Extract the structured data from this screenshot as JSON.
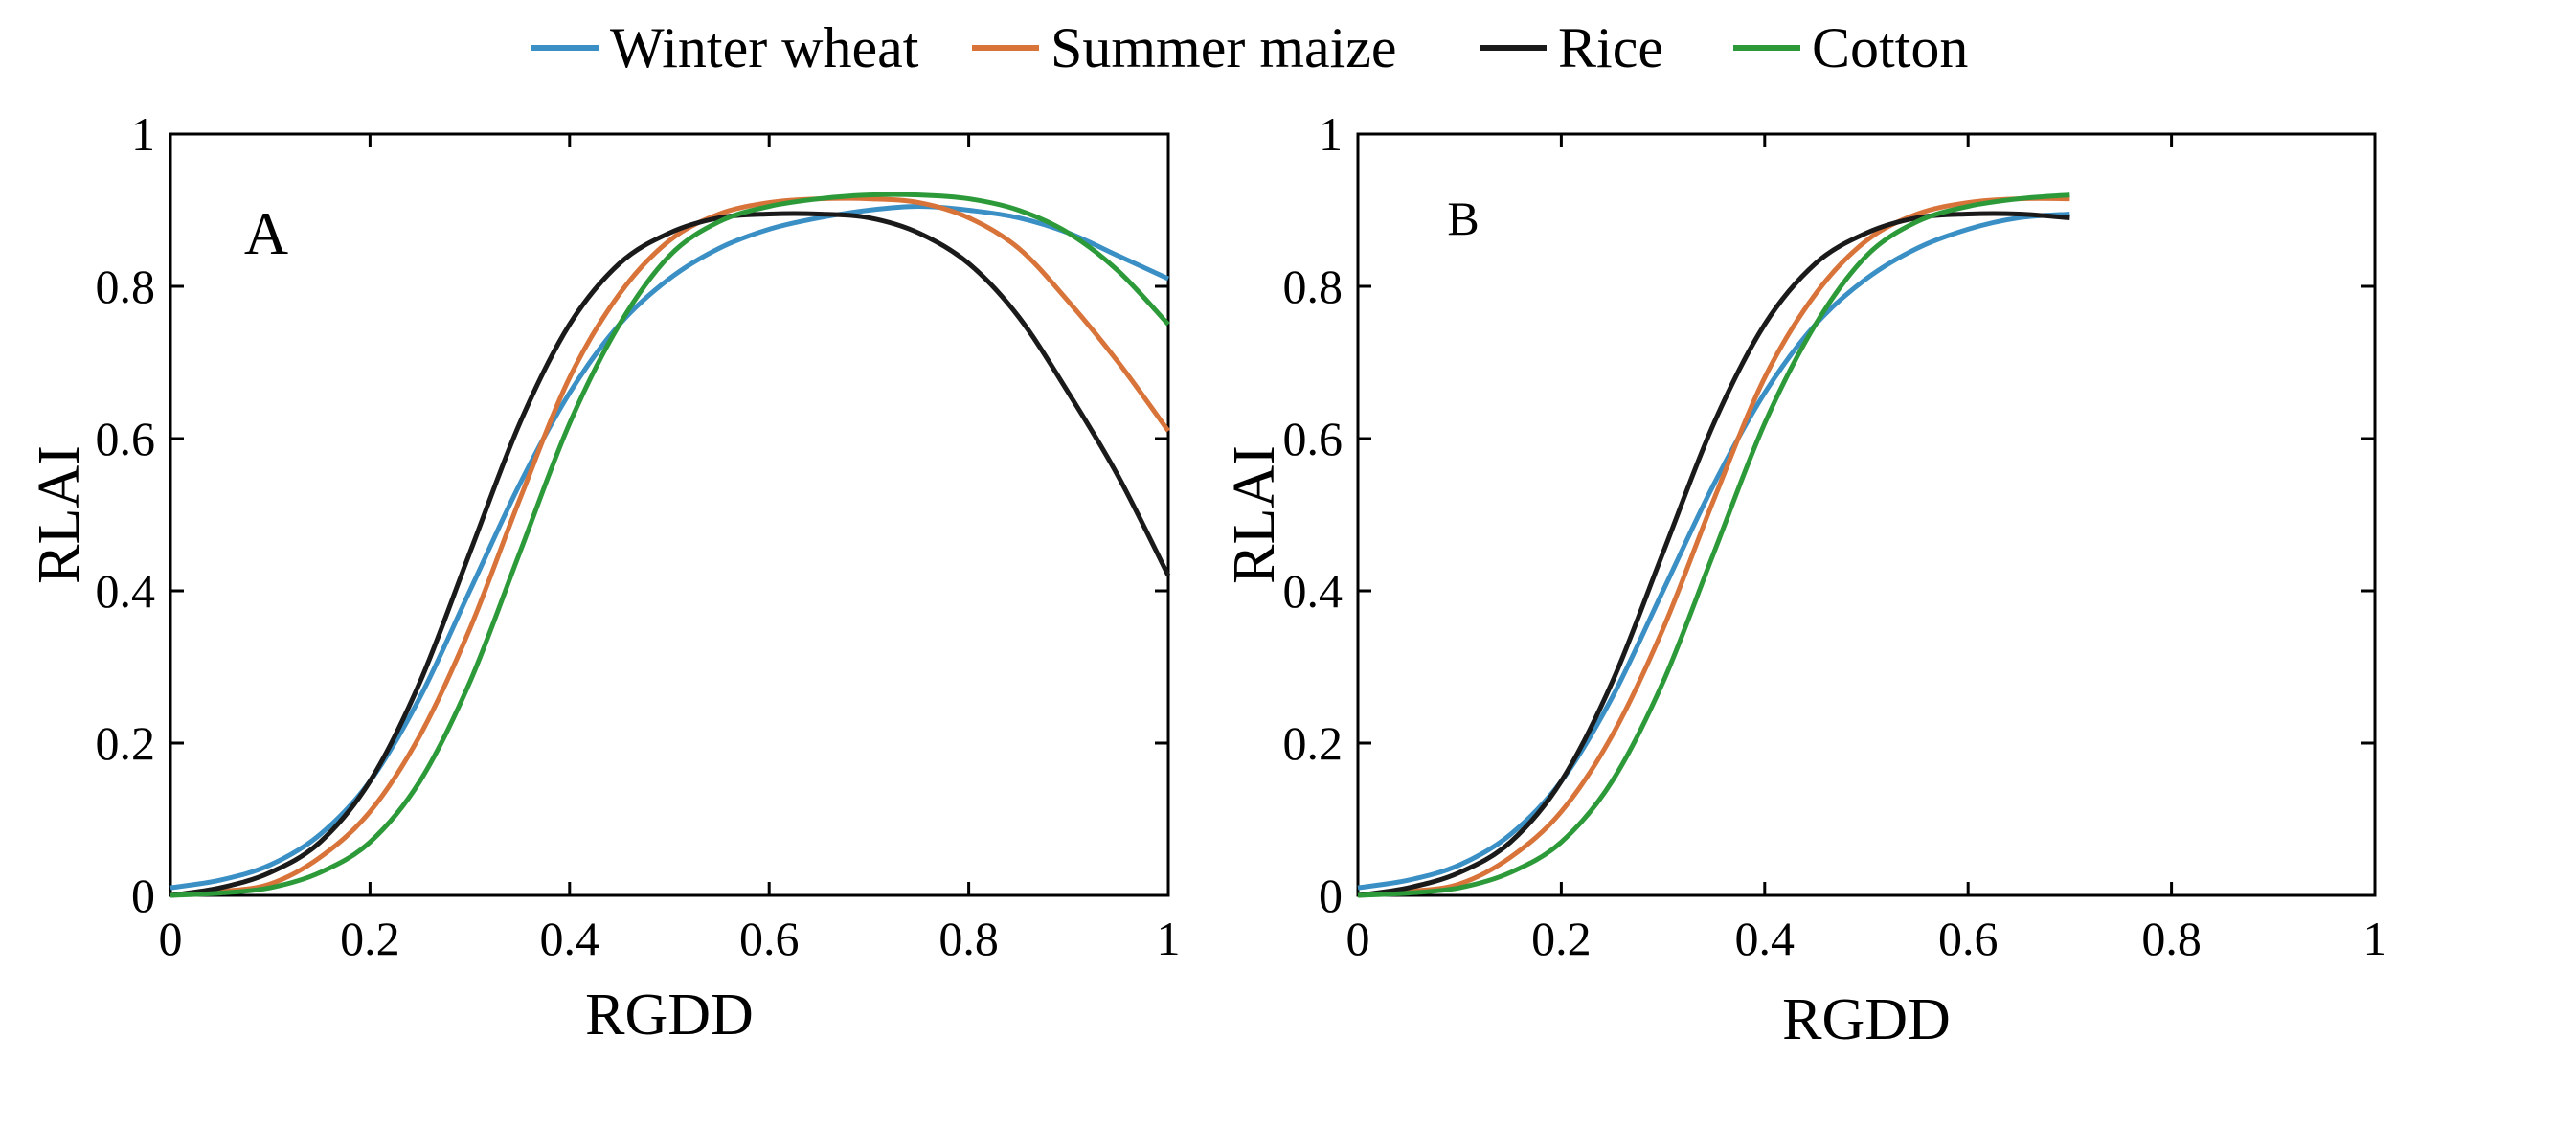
{
  "legend": [
    {
      "label": "Winter wheat",
      "color": "#3a8fc5"
    },
    {
      "label": "Summer maize",
      "color": "#d8733a"
    },
    {
      "label": "Rice",
      "color": "#1a1a1a"
    },
    {
      "label": "Cotton",
      "color": "#2d9a3a"
    }
  ],
  "chart_data": [
    {
      "type": "line",
      "panel_label": "A",
      "xlabel": "RGDD",
      "ylabel": "RLAI",
      "xlim": [
        0,
        1
      ],
      "ylim": [
        0,
        1
      ],
      "xticks": [
        0,
        0.2,
        0.4,
        0.6,
        0.8,
        1
      ],
      "yticks": [
        0,
        0.2,
        0.4,
        0.6,
        0.8,
        1
      ],
      "xtick_labels": [
        "0",
        "0.2",
        "0.4",
        "0.6",
        "0.8",
        "1"
      ],
      "ytick_labels": [
        "0",
        "0.2",
        "0.4",
        "0.6",
        "0.8",
        "1"
      ],
      "series": [
        {
          "name": "Winter wheat",
          "color": "#3a8fc5",
          "x": [
            0,
            0.05,
            0.1,
            0.15,
            0.2,
            0.25,
            0.3,
            0.35,
            0.4,
            0.45,
            0.5,
            0.55,
            0.6,
            0.65,
            0.7,
            0.75,
            0.8,
            0.85,
            0.9,
            0.95,
            1.0
          ],
          "y": [
            0.01,
            0.02,
            0.04,
            0.08,
            0.15,
            0.26,
            0.4,
            0.54,
            0.66,
            0.75,
            0.81,
            0.85,
            0.875,
            0.89,
            0.9,
            0.905,
            0.9,
            0.89,
            0.87,
            0.84,
            0.81
          ]
        },
        {
          "name": "Summer maize",
          "color": "#d8733a",
          "x": [
            0,
            0.05,
            0.1,
            0.15,
            0.2,
            0.25,
            0.3,
            0.35,
            0.4,
            0.45,
            0.5,
            0.55,
            0.6,
            0.65,
            0.7,
            0.75,
            0.8,
            0.85,
            0.9,
            0.95,
            1.0
          ],
          "y": [
            0.0,
            0.005,
            0.015,
            0.05,
            0.11,
            0.21,
            0.35,
            0.52,
            0.68,
            0.79,
            0.86,
            0.895,
            0.91,
            0.915,
            0.915,
            0.91,
            0.89,
            0.85,
            0.78,
            0.7,
            0.61
          ]
        },
        {
          "name": "Rice",
          "color": "#1a1a1a",
          "x": [
            0,
            0.05,
            0.1,
            0.15,
            0.2,
            0.25,
            0.3,
            0.35,
            0.4,
            0.45,
            0.5,
            0.55,
            0.6,
            0.65,
            0.7,
            0.75,
            0.8,
            0.85,
            0.9,
            0.95,
            1.0
          ],
          "y": [
            0.0,
            0.01,
            0.03,
            0.07,
            0.15,
            0.28,
            0.45,
            0.62,
            0.75,
            0.83,
            0.87,
            0.89,
            0.895,
            0.895,
            0.89,
            0.87,
            0.83,
            0.76,
            0.66,
            0.55,
            0.42
          ]
        },
        {
          "name": "Cotton",
          "color": "#2d9a3a",
          "x": [
            0,
            0.05,
            0.1,
            0.15,
            0.2,
            0.25,
            0.3,
            0.35,
            0.4,
            0.45,
            0.5,
            0.55,
            0.6,
            0.65,
            0.7,
            0.75,
            0.8,
            0.85,
            0.9,
            0.95,
            1.0
          ],
          "y": [
            0.0,
            0.003,
            0.01,
            0.03,
            0.07,
            0.15,
            0.28,
            0.45,
            0.62,
            0.75,
            0.84,
            0.885,
            0.905,
            0.915,
            0.92,
            0.92,
            0.915,
            0.9,
            0.87,
            0.82,
            0.75
          ]
        }
      ]
    },
    {
      "type": "line",
      "panel_label": "B",
      "xlabel": "RGDD",
      "ylabel": "RLAI",
      "xlim": [
        0,
        1
      ],
      "ylim": [
        0,
        1
      ],
      "xticks": [
        0,
        0.2,
        0.4,
        0.6,
        0.8,
        1
      ],
      "yticks": [
        0,
        0.2,
        0.4,
        0.6,
        0.8,
        1
      ],
      "xtick_labels": [
        "0",
        "0.2",
        "0.4",
        "0.6",
        "0.8",
        "1"
      ],
      "ytick_labels": [
        "0",
        "0.2",
        "0.4",
        "0.6",
        "0.8",
        "1"
      ],
      "series": [
        {
          "name": "Winter wheat",
          "color": "#3a8fc5",
          "x": [
            0,
            0.05,
            0.1,
            0.15,
            0.2,
            0.25,
            0.3,
            0.35,
            0.4,
            0.45,
            0.5,
            0.55,
            0.6,
            0.65,
            0.7
          ],
          "y": [
            0.01,
            0.02,
            0.04,
            0.08,
            0.15,
            0.26,
            0.4,
            0.54,
            0.66,
            0.75,
            0.81,
            0.85,
            0.875,
            0.89,
            0.895
          ]
        },
        {
          "name": "Summer maize",
          "color": "#d8733a",
          "x": [
            0,
            0.05,
            0.1,
            0.15,
            0.2,
            0.25,
            0.3,
            0.35,
            0.4,
            0.45,
            0.5,
            0.55,
            0.6,
            0.65,
            0.7
          ],
          "y": [
            0.0,
            0.005,
            0.015,
            0.05,
            0.11,
            0.21,
            0.35,
            0.52,
            0.68,
            0.79,
            0.86,
            0.895,
            0.91,
            0.915,
            0.915
          ]
        },
        {
          "name": "Rice",
          "color": "#1a1a1a",
          "x": [
            0,
            0.05,
            0.1,
            0.15,
            0.2,
            0.25,
            0.3,
            0.35,
            0.4,
            0.45,
            0.5,
            0.55,
            0.6,
            0.65,
            0.7
          ],
          "y": [
            0.0,
            0.01,
            0.03,
            0.07,
            0.15,
            0.28,
            0.45,
            0.62,
            0.75,
            0.83,
            0.87,
            0.89,
            0.895,
            0.895,
            0.89
          ]
        },
        {
          "name": "Cotton",
          "color": "#2d9a3a",
          "x": [
            0,
            0.05,
            0.1,
            0.15,
            0.2,
            0.25,
            0.3,
            0.35,
            0.4,
            0.45,
            0.5,
            0.55,
            0.6,
            0.65,
            0.7
          ],
          "y": [
            0.0,
            0.003,
            0.01,
            0.03,
            0.07,
            0.15,
            0.28,
            0.45,
            0.62,
            0.75,
            0.84,
            0.885,
            0.905,
            0.915,
            0.92
          ]
        }
      ]
    }
  ]
}
